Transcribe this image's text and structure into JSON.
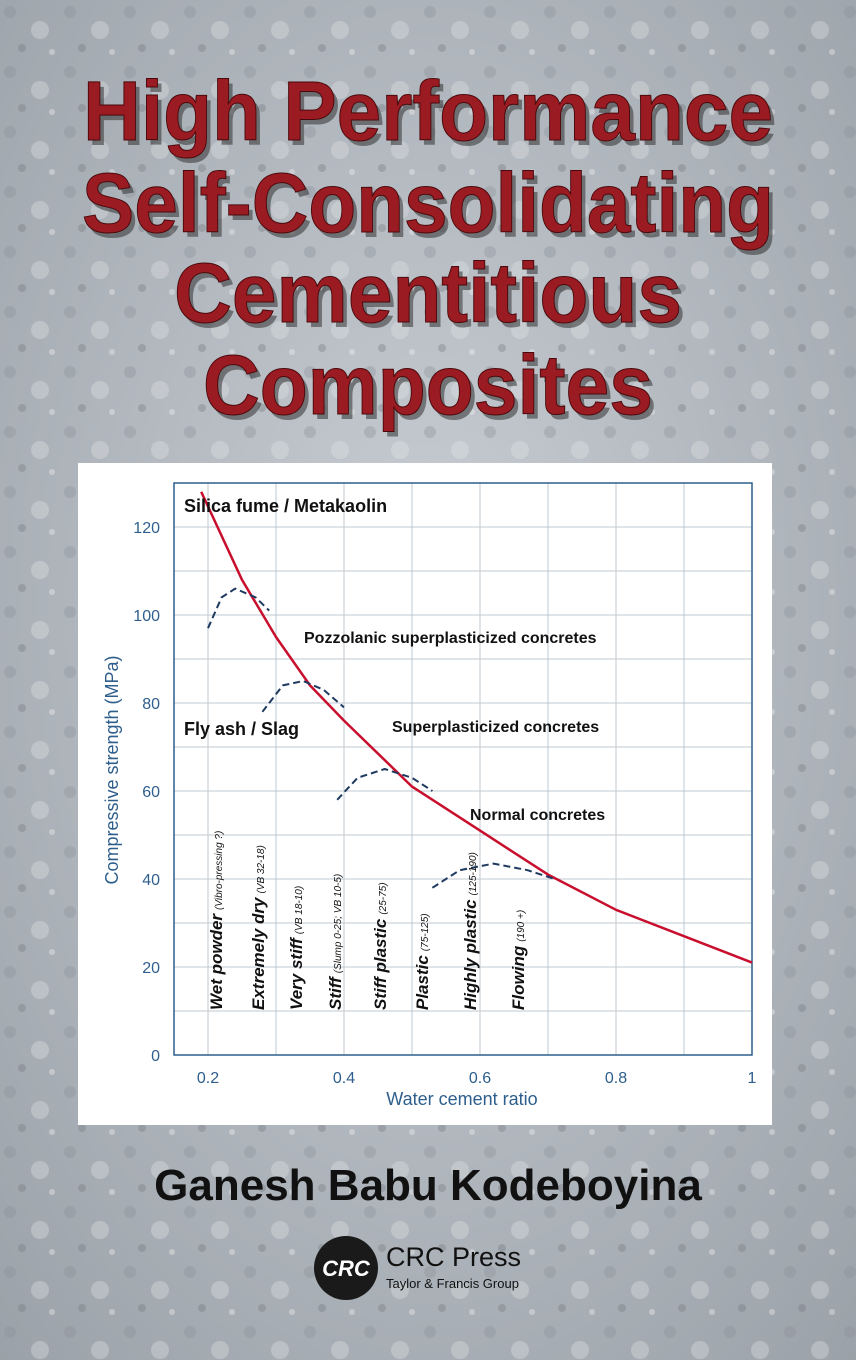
{
  "cover": {
    "title_lines": [
      "High Performance",
      "Self-Consolidating",
      "Cementitious",
      "Composites"
    ],
    "author": "Ganesh Babu Kodeboyina",
    "publisher_logo": "CRC",
    "publisher": "CRC Press",
    "publisher_group": "Taylor & Francis Group"
  },
  "chart_data": {
    "type": "line",
    "x_label": "Water cement ratio",
    "y_label": "Compressive strength (MPa)",
    "xlim": [
      0.15,
      1.0
    ],
    "ylim": [
      0,
      130
    ],
    "xticks": [
      0.2,
      0.4,
      0.6,
      0.8,
      1
    ],
    "yticks": [
      0,
      20,
      40,
      60,
      80,
      100,
      120
    ],
    "grid": true,
    "series": [
      {
        "color": "#c8102e",
        "dashed": false,
        "x": [
          0.19,
          0.25,
          0.3,
          0.35,
          0.4,
          0.5,
          0.6,
          0.7,
          0.8,
          0.9,
          1.0
        ],
        "values": [
          128,
          108,
          95,
          84,
          76,
          61,
          51,
          41,
          33,
          27,
          21
        ]
      },
      {
        "color": "#1f3a5f",
        "dashed": true,
        "x": [
          0.2,
          0.22,
          0.24,
          0.27,
          0.29
        ],
        "values": [
          97,
          104,
          106,
          104,
          101
        ]
      },
      {
        "color": "#1f3a5f",
        "dashed": true,
        "x": [
          0.28,
          0.31,
          0.34,
          0.37,
          0.4
        ],
        "values": [
          78,
          84,
          85,
          83,
          79
        ]
      },
      {
        "color": "#1f3a5f",
        "dashed": true,
        "x": [
          0.39,
          0.42,
          0.46,
          0.5,
          0.53
        ],
        "values": [
          58,
          63,
          65,
          63,
          60
        ]
      },
      {
        "color": "#1f3a5f",
        "dashed": true,
        "x": [
          0.53,
          0.57,
          0.62,
          0.67,
          0.71
        ],
        "values": [
          38,
          42,
          43.5,
          42,
          40
        ]
      }
    ],
    "annotations": [
      "Silica fume / Metakaolin",
      "Pozzolanic superplasticized concretes",
      "Fly ash / Slag",
      "Superplasticized concretes",
      "Normal concretes"
    ],
    "consistency_labels": [
      {
        "main": "Wet powder",
        "sub": "(Vibro-pressing ?)"
      },
      {
        "main": "Extremely dry",
        "sub": "(VB 32-18)"
      },
      {
        "main": "Very stiff",
        "sub": "(VB 18-10)"
      },
      {
        "main": "Stiff",
        "sub": "(Slump 0-25; VB 10-5)"
      },
      {
        "main": "Stiff plastic",
        "sub": "(25-75)"
      },
      {
        "main": "Plastic",
        "sub": "(75-125)"
      },
      {
        "main": "Highly plastic",
        "sub": "(125-190)"
      },
      {
        "main": "Flowing",
        "sub": "(190 +)"
      }
    ]
  }
}
